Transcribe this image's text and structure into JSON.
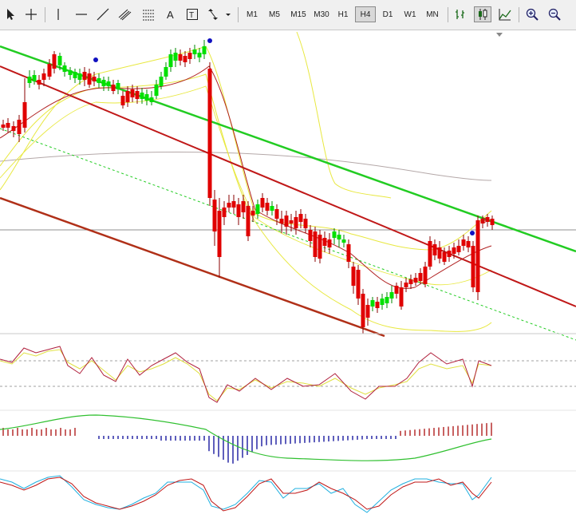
{
  "toolbar": {
    "timeframes": [
      {
        "label": "M1",
        "active": false
      },
      {
        "label": "M5",
        "active": false
      },
      {
        "label": "M15",
        "active": false
      },
      {
        "label": "M30",
        "active": false
      },
      {
        "label": "H1",
        "active": false
      },
      {
        "label": "H4",
        "active": true
      },
      {
        "label": "D1",
        "active": false
      },
      {
        "label": "W1",
        "active": false
      },
      {
        "label": "MN",
        "active": false
      }
    ],
    "tools": [
      {
        "name": "cursor-icon"
      },
      {
        "name": "crosshair-icon"
      },
      {
        "name": "vertical-line-icon"
      },
      {
        "name": "horizontal-line-icon"
      },
      {
        "name": "trendline-icon"
      },
      {
        "name": "equidistant-channel-icon"
      },
      {
        "name": "fibonacci-icon"
      },
      {
        "name": "text-label-icon"
      },
      {
        "name": "arrows-dropdown-icon"
      }
    ],
    "chart_types": [
      {
        "name": "bar-chart-icon",
        "active": false
      },
      {
        "name": "candlestick-chart-icon",
        "active": true
      },
      {
        "name": "line-chart-icon",
        "active": false
      }
    ],
    "zoom": [
      {
        "name": "zoom-in-icon"
      },
      {
        "name": "zoom-out-icon"
      }
    ]
  },
  "colors": {
    "bull_candle": "#00e000",
    "bear_candle": "#e00000",
    "upper_channel": "#22cc22",
    "mid_channel": "#c01818",
    "lower_channel": "#b03018",
    "bollinger": "#e8e840",
    "moving_average": "#b4a8a8",
    "rsi_line": "#b0203c",
    "rsi_signal": "#e0e040",
    "macd_up": "#b02020",
    "macd_down": "#1a1aa0",
    "macd_signal": "#30c030",
    "stoch_main": "#c01818",
    "stoch_signal": "#20b0e0",
    "fractal_dot": "#1010c0"
  }
}
